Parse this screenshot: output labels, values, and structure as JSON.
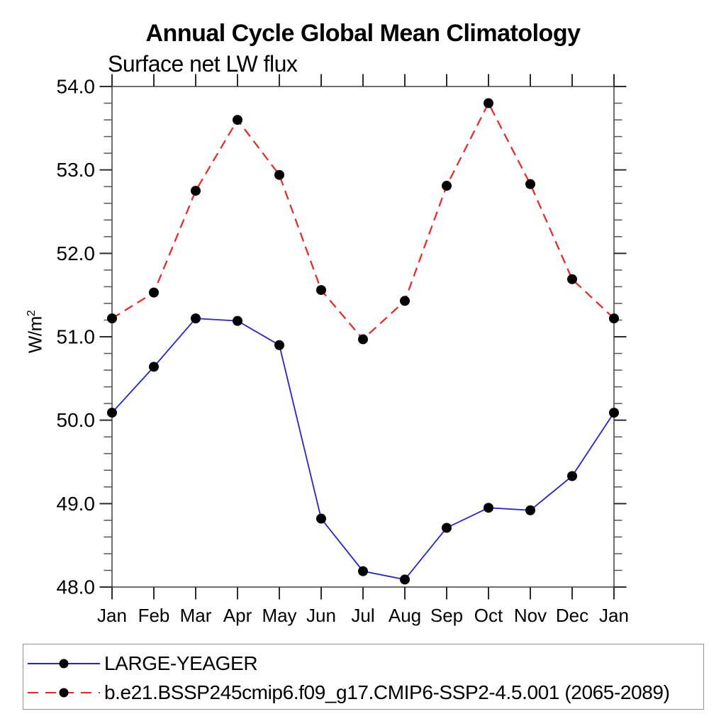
{
  "title": "Annual Cycle Global Mean Climatology",
  "subtitle": "Surface net LW flux",
  "y_axis": {
    "label_base": "W/m",
    "label_exponent": "2"
  },
  "chart_data": {
    "type": "line",
    "title": "Annual Cycle Global Mean Climatology",
    "subtitle": "Surface net LW flux",
    "ylabel": "W/m2",
    "xlabel": "",
    "categories": [
      "Jan",
      "Feb",
      "Mar",
      "Apr",
      "May",
      "Jun",
      "Jul",
      "Aug",
      "Sep",
      "Oct",
      "Nov",
      "Dec",
      "Jan"
    ],
    "ylim": [
      48.0,
      54.0
    ],
    "ytick_major_step": 1.0,
    "ytick_minor_step": 0.2,
    "ytick_labels": [
      "48.0",
      "49.0",
      "50.0",
      "51.0",
      "52.0",
      "53.0",
      "54.0"
    ],
    "grid": false,
    "legend_position": "bottom",
    "marker_color": "#000000",
    "series": [
      {
        "name": "LARGE-YEAGER",
        "color": "#2222dd",
        "style": "solid",
        "marker": "filled-circle",
        "values": [
          50.09,
          50.64,
          51.22,
          51.19,
          50.9,
          48.82,
          48.19,
          48.09,
          48.71,
          48.95,
          48.92,
          49.33,
          50.09
        ]
      },
      {
        "name": "b.e21.BSSP245cmip6.f09_g17.CMIP6-SSP2-4.5.001 (2065-2089)",
        "color": "#f52020",
        "style": "dashed",
        "marker": "filled-circle",
        "values": [
          51.22,
          51.53,
          52.75,
          53.6,
          52.94,
          51.56,
          50.97,
          51.43,
          52.81,
          53.8,
          52.83,
          51.69,
          51.22
        ]
      }
    ]
  }
}
